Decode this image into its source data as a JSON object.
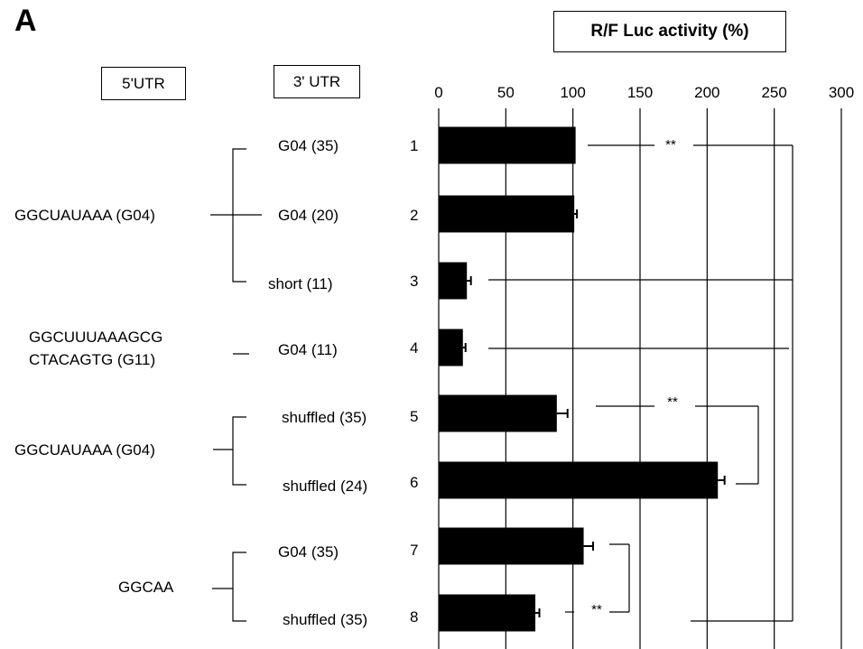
{
  "panel_label": "A",
  "header_box": "R/F Luc activity (%)",
  "utr5_header": "5'UTR",
  "utr3_header": "3' UTR",
  "five_utr_groups": [
    {
      "lines": [
        "GGCUAUAAA (G04)"
      ]
    },
    {
      "lines": [
        "GGCUUUAAAGCG",
        "CTACAGTG  (G11)"
      ]
    },
    {
      "lines": [
        "GGCUAUAAA (G04)"
      ]
    },
    {
      "lines": [
        "GGCAA"
      ]
    }
  ],
  "rows": [
    {
      "num": "1",
      "utr3": "G04 (35)"
    },
    {
      "num": "2",
      "utr3": "G04 (20)"
    },
    {
      "num": "3",
      "utr3": "short (11)"
    },
    {
      "num": "4",
      "utr3": "G04 (11)"
    },
    {
      "num": "5",
      "utr3": "shuffled (35)"
    },
    {
      "num": "6",
      "utr3": "shuffled (24)"
    },
    {
      "num": "7",
      "utr3": "G04 (35)"
    },
    {
      "num": "8",
      "utr3": "shuffled (35)"
    }
  ],
  "significance": [
    "**",
    "**",
    "**"
  ],
  "chart_data": {
    "type": "bar",
    "orientation": "horizontal",
    "categories": [
      "1",
      "2",
      "3",
      "4",
      "5",
      "6",
      "7",
      "8"
    ],
    "values": [
      102,
      101,
      21,
      18,
      88,
      208,
      108,
      72
    ],
    "errors": [
      0,
      2,
      3,
      2,
      8,
      5,
      7,
      3
    ],
    "xlim": [
      0,
      300
    ],
    "ticks": [
      "0",
      "50",
      "100",
      "150",
      "200",
      "250",
      "300"
    ],
    "grid": true,
    "bar_color": "#000000"
  }
}
